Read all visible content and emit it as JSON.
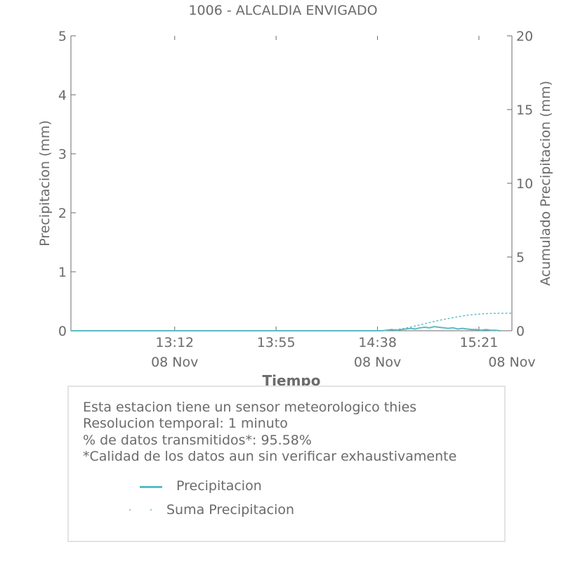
{
  "chart_data": {
    "type": "line",
    "title": "1006 - ALCALDIA ENVIGADO",
    "xlabel": "Tiempo",
    "ylabel": "Precipitacion (mm)",
    "ylabel_right": "Acumulado Precipitacion (mm)",
    "ylim": [
      0,
      5
    ],
    "ylim_right": [
      0,
      20
    ],
    "yticks": [
      "0",
      "1",
      "2",
      "3",
      "4",
      "5"
    ],
    "yticks_right": [
      "0",
      "5",
      "10",
      "15",
      "20"
    ],
    "xticks": [
      {
        "time": "13:12",
        "date": "08 Nov"
      },
      {
        "time": "13:55",
        "date": ""
      },
      {
        "time": "14:38",
        "date": "08 Nov"
      },
      {
        "time": "15:21",
        "date": ""
      }
    ],
    "xticks_minor_dates": [
      "08 Nov",
      "08 Nov",
      "08 Nov"
    ],
    "x_range": [
      "12:28",
      "15:35"
    ],
    "grid": false,
    "series": [
      {
        "name": "Precipitacion",
        "axis": "left",
        "color": "#5bbcc2",
        "style": "solid",
        "x": [
          "12:28",
          "14:40",
          "14:44",
          "14:46",
          "14:48",
          "14:50",
          "14:52",
          "14:54",
          "14:56",
          "14:58",
          "15:00",
          "15:02",
          "15:04",
          "15:06",
          "15:08",
          "15:10",
          "15:12",
          "15:14",
          "15:16",
          "15:18",
          "15:20",
          "15:22",
          "15:24",
          "15:26",
          "15:28",
          "15:30"
        ],
        "values": [
          0,
          0,
          0.02,
          0.01,
          0.02,
          0.03,
          0.04,
          0.03,
          0.05,
          0.06,
          0.05,
          0.07,
          0.06,
          0.05,
          0.04,
          0.05,
          0.03,
          0.04,
          0.03,
          0.02,
          0.02,
          0.01,
          0.02,
          0.01,
          0.01,
          0
        ]
      },
      {
        "name": "Suma Precipitacion",
        "axis": "right",
        "color": "#5bbcc2",
        "style": "dotted",
        "x": [
          "12:28",
          "14:40",
          "14:44",
          "14:48",
          "14:52",
          "14:56",
          "15:00",
          "15:04",
          "15:08",
          "15:12",
          "15:16",
          "15:20",
          "15:24",
          "15:28",
          "15:35"
        ],
        "values": [
          0,
          0,
          0.05,
          0.12,
          0.25,
          0.4,
          0.55,
          0.7,
          0.83,
          0.95,
          1.05,
          1.12,
          1.16,
          1.18,
          1.19
        ]
      }
    ]
  },
  "info": {
    "lines": [
      "Esta estacion tiene un sensor meteorologico thies",
      "Resolucion temporal: 1 minuto",
      "% de datos transmitidos*: 95.58%",
      "*Calidad de los datos aun sin verificar exhaustivamente"
    ],
    "legend": [
      {
        "label": "Precipitacion"
      },
      {
        "label": "Suma Precipitacion"
      }
    ]
  },
  "colors": {
    "series": "#5bbcc2",
    "axis": "#6b6b6b",
    "border": "#e3e3e3"
  }
}
